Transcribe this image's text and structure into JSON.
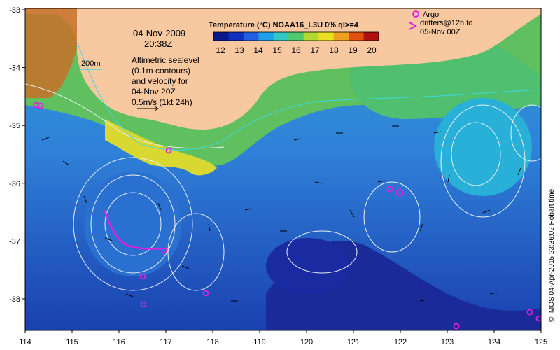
{
  "map": {
    "date": "04-Nov-2009",
    "time": "20:38Z",
    "isobath_label": "200m",
    "altimetry_note": [
      "Altimetric sealevel",
      "(0.1m contours)",
      "and velocity for",
      "04-Nov 20Z",
      "0.5m/s (1kt 24h)"
    ],
    "colorbar": {
      "title": "Temperature (°C) NOAA16_L3U 0% ql>=4",
      "ticks": [
        "12",
        "13",
        "14",
        "15",
        "16",
        "17",
        "18",
        "19",
        "20"
      ],
      "colors": [
        "#0b1a8a",
        "#1030c0",
        "#2060e0",
        "#20a0e8",
        "#30c8c0",
        "#50c870",
        "#b0d830",
        "#e8e020",
        "#f0a020",
        "#e05010",
        "#b01010"
      ]
    },
    "argo_legend": [
      "Argo",
      "drifters@12h to",
      "05-Nov 00Z"
    ],
    "credit": "© IMOS 04-Apr-2015 23:36:02 Hobart time",
    "lon_ticks": [
      "114",
      "115",
      "116",
      "117",
      "118",
      "119",
      "120",
      "121",
      "122",
      "123",
      "124",
      "125"
    ],
    "lat_ticks": [
      "-33",
      "-34",
      "-35",
      "-36",
      "-37",
      "-38"
    ],
    "colors": {
      "land": "#f8c8a0",
      "ocean_base": "#3070d0",
      "argo": "#e020e0",
      "contour": "#e8f0f8"
    }
  }
}
